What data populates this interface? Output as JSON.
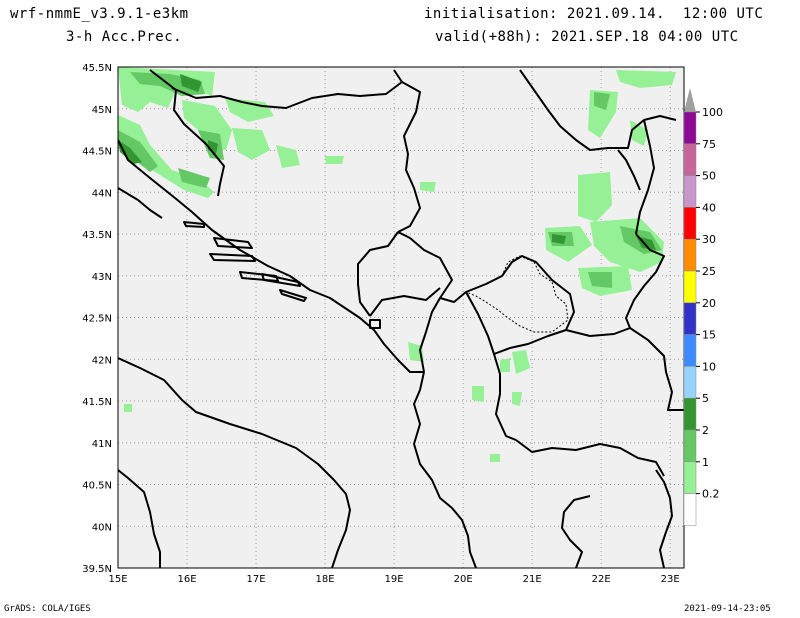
{
  "header": {
    "model": "wrf-nmmE_v3.9.1-e3km",
    "field": "3-h Acc.Prec.",
    "init": "initialisation: 2021.09.14.  12:00 UTC",
    "valid": "valid(+88h): 2021.SEP.18 04:00 UTC"
  },
  "footer": {
    "credit": "GrADS: COLA/IGES",
    "timestamp": "2021-09-14-23:05"
  },
  "map": {
    "lon_ticks": [
      "15E",
      "16E",
      "17E",
      "18E",
      "19E",
      "20E",
      "21E",
      "22E",
      "23E"
    ],
    "lat_ticks": [
      "45.5N",
      "45N",
      "44.5N",
      "44N",
      "43.5N",
      "43N",
      "42.5N",
      "42N",
      "41.5N",
      "41N",
      "40.5N",
      "40N",
      "39.5N"
    ],
    "extent": {
      "lon": [
        15,
        23.2
      ],
      "lat": [
        39.5,
        45.5
      ]
    },
    "land_color": "#f0f0f0",
    "sea_color": "#f0f0f0",
    "grid": true
  },
  "legend": {
    "labels": [
      "100",
      "75",
      "50",
      "40",
      "30",
      "25",
      "20",
      "15",
      "10",
      "5",
      "2",
      "1",
      "0.2"
    ],
    "colors": [
      "#a0a0a0",
      "#8c0a96",
      "#c8649a",
      "#c896c8",
      "#ff0000",
      "#ff8c00",
      "#ffff00",
      "#3232c8",
      "#3c8cff",
      "#96d2fa",
      "#329632",
      "#64c864",
      "#96f096",
      "#ffffff"
    ]
  }
}
